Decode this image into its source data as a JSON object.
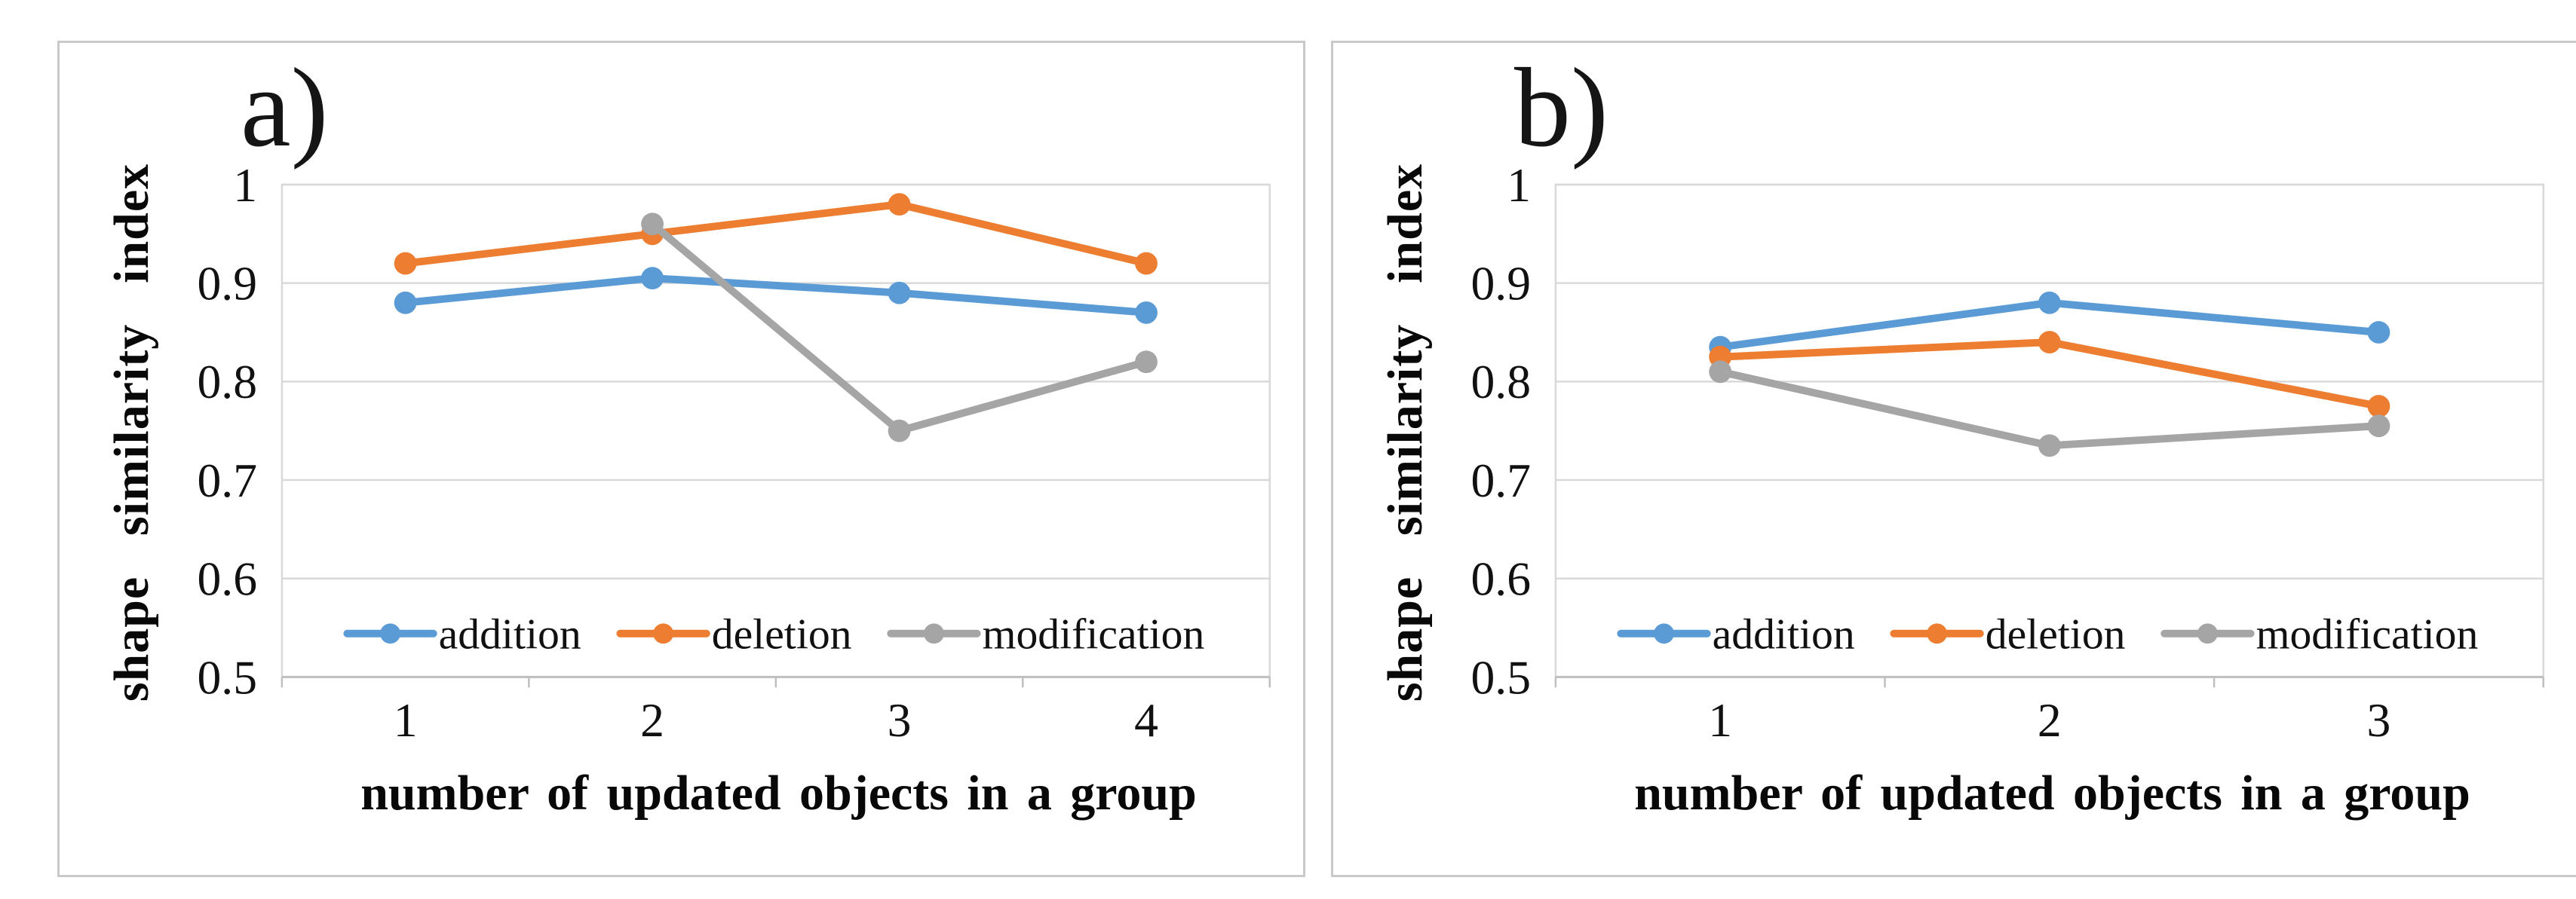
{
  "style": {
    "background": "#ffffff",
    "panel_border_color": "#c9c9c9",
    "gridline_color": "#d9d9d9",
    "axis_line_color": "#bfbfbf",
    "tick_label_color": "#111111",
    "series_colors": {
      "addition": "#5B9BD5",
      "deletion": "#ED7D31",
      "modification": "#A5A5A5"
    }
  },
  "chart_data": [
    {
      "type": "line",
      "panel_label": "a)",
      "y_axis_title": "shape similarity index",
      "x_axis_title": "number of updated objects in a group",
      "categories": [
        "1",
        "2",
        "3",
        "4"
      ],
      "y_ticks": [
        "1",
        "0.9",
        "0.8",
        "0.7",
        "0.6",
        "0.5"
      ],
      "ylim": [
        0.5,
        1.0
      ],
      "grid": "horizontal",
      "legend_position": "inside-bottom",
      "series": [
        {
          "name": "addition",
          "color": "#5B9BD5",
          "values": [
            0.88,
            0.905,
            0.89,
            0.87
          ]
        },
        {
          "name": "deletion",
          "color": "#ED7D31",
          "values": [
            0.92,
            0.95,
            0.98,
            0.92
          ]
        },
        {
          "name": "modification",
          "color": "#A5A5A5",
          "values": [
            null,
            0.96,
            0.75,
            0.82
          ]
        }
      ]
    },
    {
      "type": "line",
      "panel_label": "b)",
      "y_axis_title": "shape similarity index",
      "x_axis_title": "number of updated objects in a group",
      "categories": [
        "1",
        "2",
        "3"
      ],
      "y_ticks": [
        "1",
        "0.9",
        "0.8",
        "0.7",
        "0.6",
        "0.5"
      ],
      "ylim": [
        0.5,
        1.0
      ],
      "grid": "horizontal",
      "legend_position": "inside-bottom",
      "series": [
        {
          "name": "addition",
          "color": "#5B9BD5",
          "values": [
            0.835,
            0.88,
            0.85
          ]
        },
        {
          "name": "deletion",
          "color": "#ED7D31",
          "values": [
            0.825,
            0.84,
            0.775
          ]
        },
        {
          "name": "modification",
          "color": "#A5A5A5",
          "values": [
            0.81,
            0.735,
            0.755
          ]
        }
      ]
    }
  ]
}
